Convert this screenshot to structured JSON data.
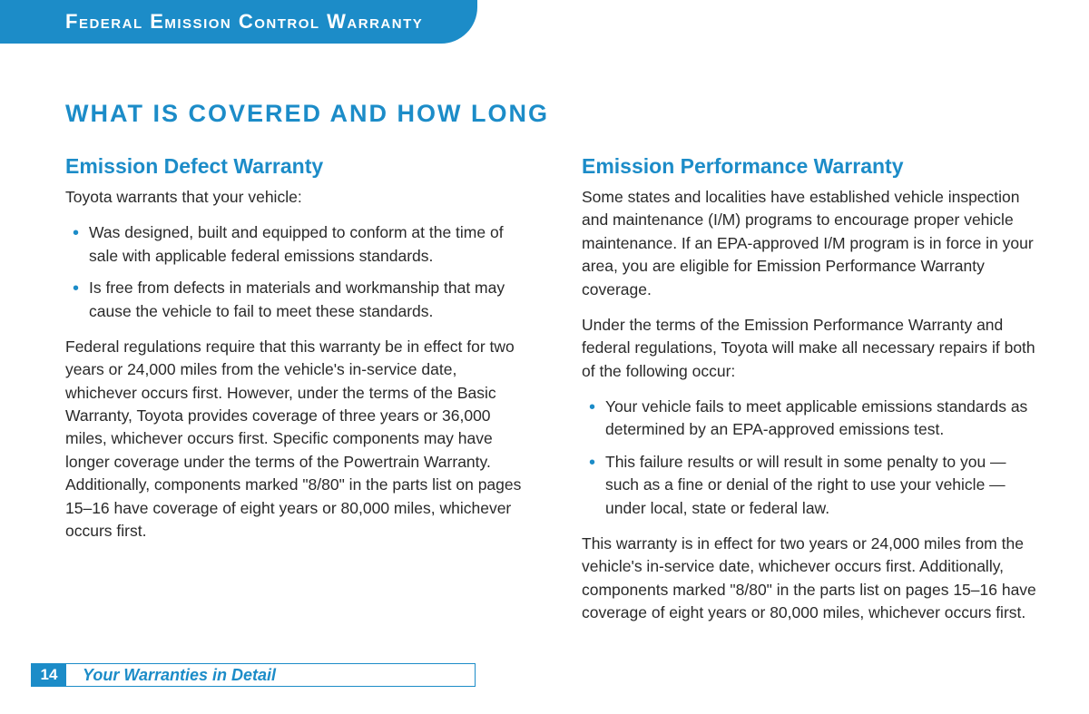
{
  "colors": {
    "brand_blue": "#1c8cc8",
    "text": "#2a2a2a",
    "white": "#ffffff"
  },
  "header": {
    "tab_title": "Federal Emission Control Warranty"
  },
  "main_heading": "WHAT IS COVERED AND HOW LONG",
  "left": {
    "heading": "Emission Defect Warranty",
    "intro": "Toyota warrants that your vehicle:",
    "bullets": [
      "Was designed, built and equipped to conform at the time of sale with applicable federal emissions standards.",
      "Is free from defects in materials and workmanship that may cause the vehicle to fail to meet these standards."
    ],
    "para": "Federal regulations require that this warranty be in effect for two years or 24,000 miles from the vehicle's in-service date, whichever occurs first. However, under the terms of the Basic Warranty, Toyota provides coverage of three years or 36,000 miles, whichever occurs first. Specific components may have longer coverage under the terms of the Powertrain Warranty. Additionally, components marked \"8/80\" in the parts list on pages 15–16 have coverage of eight years or 80,000 miles, whichever occurs first."
  },
  "right": {
    "heading": "Emission Performance Warranty",
    "para1": "Some states and localities have established vehicle inspection and maintenance (I/M) programs to encourage proper vehicle maintenance. If an EPA-approved I/M program is in force in your area, you are eligible for Emission Performance Warranty coverage.",
    "para2": "Under the terms of the Emission Performance Warranty and federal regulations, Toyota will make all necessary repairs if both of the following occur:",
    "bullets": [
      "Your vehicle fails to meet applicable emissions standards as determined by an EPA-approved emissions test.",
      "This failure results or will result in some penalty to you — such as a fine or denial of the right to use your vehicle — under local, state or federal law."
    ],
    "para3": "This warranty is in effect for two years or 24,000 miles from the vehicle's in-service date, whichever occurs first. Additionally, components marked \"8/80\" in the parts list on pages 15–16 have coverage of eight years or 80,000 miles, whichever occurs first."
  },
  "footer": {
    "page_number": "14",
    "section": "Your Warranties in Detail"
  }
}
